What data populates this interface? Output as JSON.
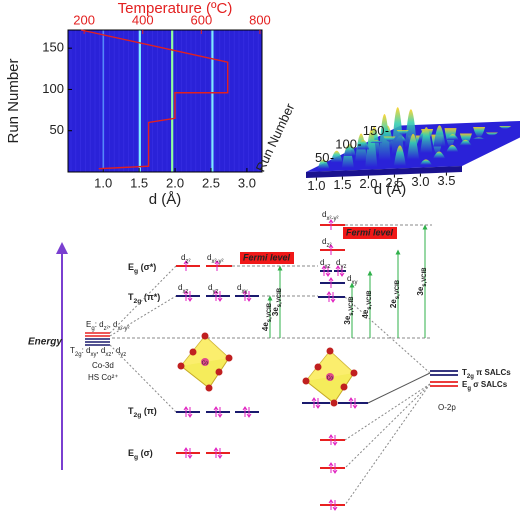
{
  "chart_data": [
    {
      "type": "heatmap",
      "x_label": "d (Å)",
      "y_label": "Run Number",
      "x2_label": "Temperature (ºC)",
      "xlim": [
        0.51,
        3.21
      ],
      "xticks": [
        {
          "value": 1,
          "label": "1.0"
        },
        {
          "value": 1.5,
          "label": "1.5"
        },
        {
          "value": 2,
          "label": "2.0"
        },
        {
          "value": 2.5,
          "label": "2.5"
        },
        {
          "value": 3,
          "label": "3.0"
        }
      ],
      "x2lim": [
        145,
        807
      ],
      "x2ticks": [
        200,
        400,
        600,
        800
      ],
      "ylim": [
        0,
        172
      ],
      "yticks": [
        50,
        100,
        150
      ],
      "background": "#2a22d8",
      "peaks_d": [
        1.0,
        1.51,
        1.96,
        2.52
      ],
      "peak_colors": [
        "#5fa0ff",
        "#7ff0ff",
        "#8fff9f",
        "#7fe8ff"
      ],
      "temperature": {
        "color": "#e32020",
        "axis": "x2",
        "x": [
          190,
          690,
          690,
          510,
          510,
          420,
          420,
          250
        ],
        "y": [
          172,
          133,
          96,
          96,
          65,
          60,
          7,
          4
        ]
      }
    },
    {
      "type": "surface3d",
      "x_label": "d (Å)",
      "y_label": "Run Number",
      "xlim": [
        0.8,
        3.8
      ],
      "xticks": [
        {
          "value": 1,
          "label": "1.0"
        },
        {
          "value": 1.5,
          "label": "1.5"
        },
        {
          "value": 2,
          "label": "2.0"
        },
        {
          "value": 2.5,
          "label": "2.5"
        },
        {
          "value": 3,
          "label": "3.0"
        },
        {
          "value": 3.5,
          "label": "3.5"
        }
      ],
      "ylim": [
        0,
        172
      ],
      "yticks": [
        50,
        100,
        150
      ]
    }
  ],
  "diagram": {
    "energy_label": "Energy",
    "mo_labels": [
      [
        "E",
        "g",
        " (σ*)"
      ],
      [
        "T",
        "2g",
        " (π*)"
      ],
      [
        "T",
        "2g",
        " (π)"
      ],
      [
        "E",
        "g",
        " (σ)"
      ]
    ],
    "upper_orbitals": [
      [
        "d",
        "z²"
      ],
      [
        "d",
        "x²-y²"
      ],
      [
        "d",
        "xz"
      ],
      [
        "d",
        "yz"
      ],
      [
        "d",
        "xy"
      ]
    ],
    "fermi": [
      "Fermi level",
      "Fermi level"
    ],
    "co3d_eg": [
      "E",
      "g",
      ": d",
      "z²",
      ", d",
      "x²-y²"
    ],
    "co3d_t2g": [
      "T",
      "2g",
      ": d",
      "xy",
      ", d",
      "xz",
      ", d",
      "yz"
    ],
    "co3d_name": "Co-3d",
    "co3d_spin": "HS Co²⁺",
    "co_atom": [
      "Co",
      "Co"
    ],
    "gaps": [
      [
        "4e",
        "s,VCIB"
      ],
      [
        "3e",
        "s,VCIB"
      ],
      [
        "3e",
        "s,VCIB"
      ],
      [
        "4e",
        "s,VCIB"
      ],
      [
        "2e",
        "s,VCIB"
      ],
      [
        "3e",
        "s,VCIB"
      ]
    ],
    "right_orbitals": [
      [
        "d",
        "x²-y²"
      ],
      [
        "d",
        "z²"
      ],
      [
        "d",
        "xz"
      ],
      [
        "d",
        "yz"
      ],
      [
        "d",
        "xy"
      ]
    ],
    "salcs": [
      [
        "T",
        "2g",
        " π SALCs"
      ],
      [
        "E",
        "g",
        " σ SALCs"
      ]
    ],
    "o2p": "O-2p"
  }
}
